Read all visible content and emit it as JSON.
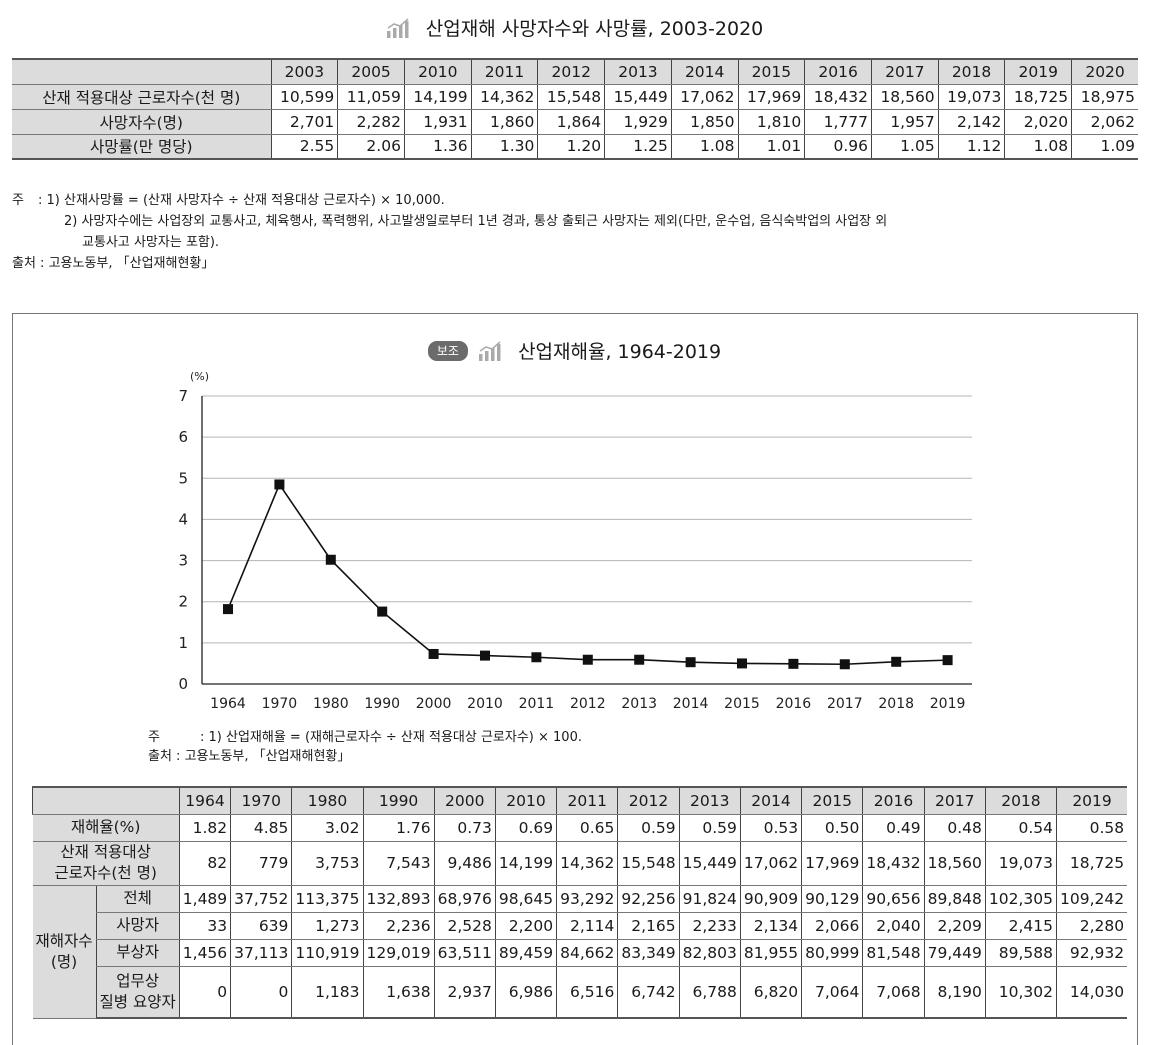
{
  "table1": {
    "title": "산업재해 사망자수와 사망률, 2003-2020",
    "years": [
      "2003",
      "2005",
      "2010",
      "2011",
      "2012",
      "2013",
      "2014",
      "2015",
      "2016",
      "2017",
      "2018",
      "2019",
      "2020"
    ],
    "rows": [
      {
        "label": "산재 적용대상 근로자수(천 명)",
        "values": [
          "10,599",
          "11,059",
          "14,199",
          "14,362",
          "15,548",
          "15,449",
          "17,062",
          "17,969",
          "18,432",
          "18,560",
          "19,073",
          "18,725",
          "18,975"
        ]
      },
      {
        "label": "사망자수(명)",
        "values": [
          "2,701",
          "2,282",
          "1,931",
          "1,860",
          "1,864",
          "1,929",
          "1,850",
          "1,810",
          "1,777",
          "1,957",
          "2,142",
          "2,020",
          "2,062"
        ]
      },
      {
        "label": "사망률(만 명당)",
        "values": [
          "2.55",
          "2.06",
          "1.36",
          "1.30",
          "1.20",
          "1.25",
          "1.08",
          "1.01",
          "0.96",
          "1.05",
          "1.12",
          "1.08",
          "1.09"
        ]
      }
    ],
    "notes": {
      "lead": "주",
      "note1": ": 1) 산재사망률 = (산재 사망자수 ÷ 산재 적용대상 근로자수) × 10,000.",
      "note2a": "2) 사망자수에는 사업장외 교통사고, 체육행사, 폭력행위, 사고발생일로부터 1년 경과, 통상 출퇴근 사망자는 제외(다만, 운수업, 음식숙박업의 사업장 외",
      "note2b": "교통사고 사망자는 포함).",
      "source": "출처 : 고용노동부, 「산업재해현황」"
    }
  },
  "chart_section": {
    "badge": "보조",
    "title": "산업재해율, 1964-2019",
    "notes": {
      "lead": "주",
      "note1": ": 1) 산업재해율 = (재해근로자수 ÷ 산재 적용대상 근로자수) × 100.",
      "source": "출처 : 고용노동부, 「산업재해현황」"
    }
  },
  "chart_data": {
    "type": "line",
    "title": "산업재해율, 1964-2019",
    "ylabel": "(%)",
    "categories": [
      "1964",
      "1970",
      "1980",
      "1990",
      "2000",
      "2010",
      "2011",
      "2012",
      "2013",
      "2014",
      "2015",
      "2016",
      "2017",
      "2018",
      "2019"
    ],
    "series": [
      {
        "values": [
          1.82,
          4.85,
          3.02,
          1.76,
          0.73,
          0.69,
          0.65,
          0.59,
          0.59,
          0.53,
          0.5,
          0.49,
          0.48,
          0.54,
          0.58
        ]
      }
    ],
    "ylim": [
      0,
      7
    ],
    "yticks": [
      "0",
      "1",
      "2",
      "3",
      "4",
      "5",
      "6",
      "7"
    ],
    "grid": true
  },
  "table2": {
    "years": [
      "1964",
      "1970",
      "1980",
      "1990",
      "2000",
      "2010",
      "2011",
      "2012",
      "2013",
      "2014",
      "2015",
      "2016",
      "2017",
      "2018",
      "2019"
    ],
    "rate": {
      "label": "재해율(%)",
      "values": [
        "1.82",
        "4.85",
        "3.02",
        "1.76",
        "0.73",
        "0.69",
        "0.65",
        "0.59",
        "0.59",
        "0.53",
        "0.50",
        "0.49",
        "0.48",
        "0.54",
        "0.58"
      ]
    },
    "workers": {
      "label1": "산재 적용대상",
      "label2": "근로자수(천 명)",
      "values": [
        "82",
        "779",
        "3,753",
        "7,543",
        "9,486",
        "14,199",
        "14,362",
        "15,548",
        "15,449",
        "17,062",
        "17,969",
        "18,432",
        "18,560",
        "19,073",
        "18,725"
      ]
    },
    "victims_group": {
      "label1": "재해자수",
      "label2": "(명)"
    },
    "total": {
      "label": "전체",
      "values": [
        "1,489",
        "37,752",
        "113,375",
        "132,893",
        "68,976",
        "98,645",
        "93,292",
        "92,256",
        "91,824",
        "90,909",
        "90,129",
        "90,656",
        "89,848",
        "102,305",
        "109,242"
      ]
    },
    "deaths": {
      "label": "사망자",
      "values": [
        "33",
        "639",
        "1,273",
        "2,236",
        "2,528",
        "2,200",
        "2,114",
        "2,165",
        "2,233",
        "2,134",
        "2,066",
        "2,040",
        "2,209",
        "2,415",
        "2,280"
      ]
    },
    "injured": {
      "label": "부상자",
      "values": [
        "1,456",
        "37,113",
        "110,919",
        "129,019",
        "63,511",
        "89,459",
        "84,662",
        "83,349",
        "82,803",
        "81,955",
        "80,999",
        "81,548",
        "79,449",
        "89,588",
        "92,932"
      ]
    },
    "disease": {
      "label1": "업무상",
      "label2": "질병 요양자",
      "values": [
        "0",
        "0",
        "1,183",
        "1,638",
        "2,937",
        "6,986",
        "6,516",
        "6,742",
        "6,788",
        "6,820",
        "7,064",
        "7,068",
        "8,190",
        "10,302",
        "14,030"
      ]
    }
  }
}
